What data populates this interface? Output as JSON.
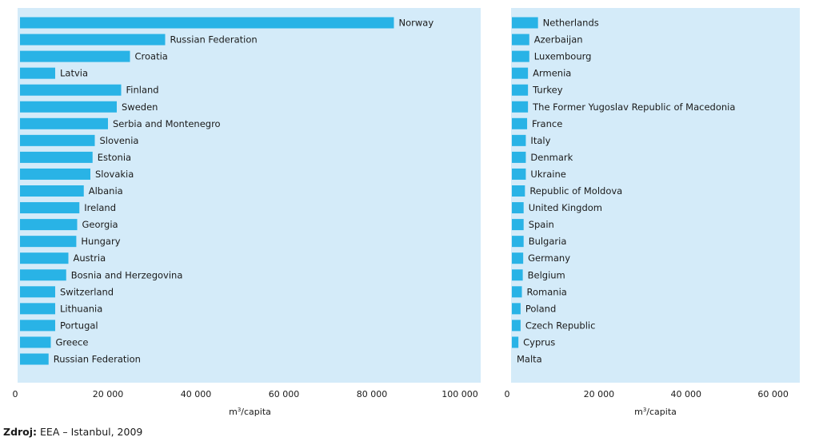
{
  "chart_data": [
    {
      "type": "bar",
      "orientation": "horizontal",
      "panel": "left",
      "categories": [
        "Norway",
        "Russian Federation",
        "Croatia",
        "Latvia",
        "Finland",
        "Sweden",
        "Serbia and Montenegro",
        "Slovenia",
        "Estonia",
        "Slovakia",
        "Albania",
        "Ireland",
        "Georgia",
        "Hungary",
        "Austria",
        "Bosnia and Herzegovina",
        "Switzerland",
        "Lithuania",
        "Portugal",
        "Greece",
        "Russian Federation"
      ],
      "values": [
        85000,
        33000,
        25000,
        8000,
        23000,
        22000,
        20000,
        17000,
        16500,
        16000,
        14500,
        13500,
        13000,
        12800,
        11000,
        10500,
        8000,
        8000,
        8000,
        7000,
        6500
      ],
      "xlim": [
        0,
        100000
      ],
      "xticks": [
        "0",
        "20 000",
        "40 000",
        "60 000",
        "80 000",
        "100 000"
      ],
      "xlabel_base": "m",
      "xlabel_sup": "3",
      "xlabel_rest": "/capita",
      "bar_color": "#29b3e6",
      "background": "#d4ebf9"
    },
    {
      "type": "bar",
      "orientation": "horizontal",
      "panel": "right",
      "categories": [
        "Netherlands",
        "Azerbaijan",
        "Luxembourg",
        "Armenia",
        "Turkey",
        "The Former Yugoslav Republic of Macedonia",
        "France",
        "Italy",
        "Denmark",
        "Ukraine",
        "Republic of Moldova",
        "United Kingdom",
        "Spain",
        "Bulgaria",
        "Germany",
        "Belgium",
        "Romania",
        "Poland",
        "Czech Republic",
        "Cyprus",
        "Malta"
      ],
      "values": [
        6000,
        4000,
        4000,
        3700,
        3700,
        3700,
        3500,
        3200,
        3200,
        3200,
        3000,
        2700,
        2700,
        2700,
        2600,
        2500,
        2300,
        2000,
        2000,
        1500,
        0
      ],
      "xlim": [
        0,
        63000
      ],
      "xticks": [
        "0",
        "20 000",
        "40 000",
        "60 000"
      ],
      "xlabel_base": "m",
      "xlabel_sup": "3",
      "xlabel_rest": "/capita",
      "bar_color": "#29b3e6",
      "background": "#d4ebf9"
    }
  ],
  "source": {
    "label": "Zdroj:",
    "text": " EEA – Istanbul, 2009"
  }
}
